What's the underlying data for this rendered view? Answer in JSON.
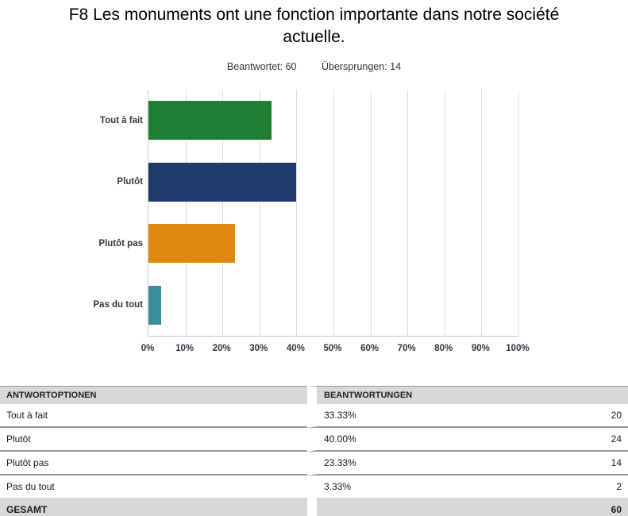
{
  "header": {
    "title": "F8 Les monuments ont une fonction importante dans notre société actuelle.",
    "answered_label": "Beantwortet:",
    "answered_value": "60",
    "skipped_label": "Übersprungen:",
    "skipped_value": "14"
  },
  "chart_data": {
    "type": "bar",
    "orientation": "horizontal",
    "title": "F8 Les monuments ont une fonction importante dans notre société actuelle.",
    "categories": [
      "Tout à fait",
      "Plutôt",
      "Plutôt pas",
      "Pas du tout"
    ],
    "values": [
      33.33,
      40.0,
      23.33,
      3.33
    ],
    "value_unit": "%",
    "bar_colors": [
      "#1e7e34",
      "#1f3a6c",
      "#e0890f",
      "#3d8e9c"
    ],
    "xlabel": "",
    "ylabel": "",
    "xlim": [
      0,
      100
    ],
    "x_ticks": [
      "0%",
      "10%",
      "20%",
      "30%",
      "40%",
      "50%",
      "60%",
      "70%",
      "80%",
      "90%",
      "100%"
    ],
    "grid": true,
    "legend": false,
    "gridline_color": "#dddddd",
    "axis_color": "#c9c9c9"
  },
  "table": {
    "headers": {
      "options": "ANTWORTOPTIONEN",
      "responses": "BEANTWORTUNGEN"
    },
    "rows": [
      {
        "option": "Tout à fait",
        "percent": "33.33%",
        "count": "20"
      },
      {
        "option": "Plutôt",
        "percent": "40.00%",
        "count": "24"
      },
      {
        "option": "Plutôt pas",
        "percent": "23.33%",
        "count": "14"
      },
      {
        "option": "Pas du tout",
        "percent": "3.33%",
        "count": "2"
      }
    ],
    "total": {
      "label": "GESAMT",
      "count": "60"
    }
  },
  "colors": {
    "header_row_bg": "#d8d8d8",
    "total_row_bg": "#d8d8d8",
    "row_separator": "#9b9b9b"
  }
}
